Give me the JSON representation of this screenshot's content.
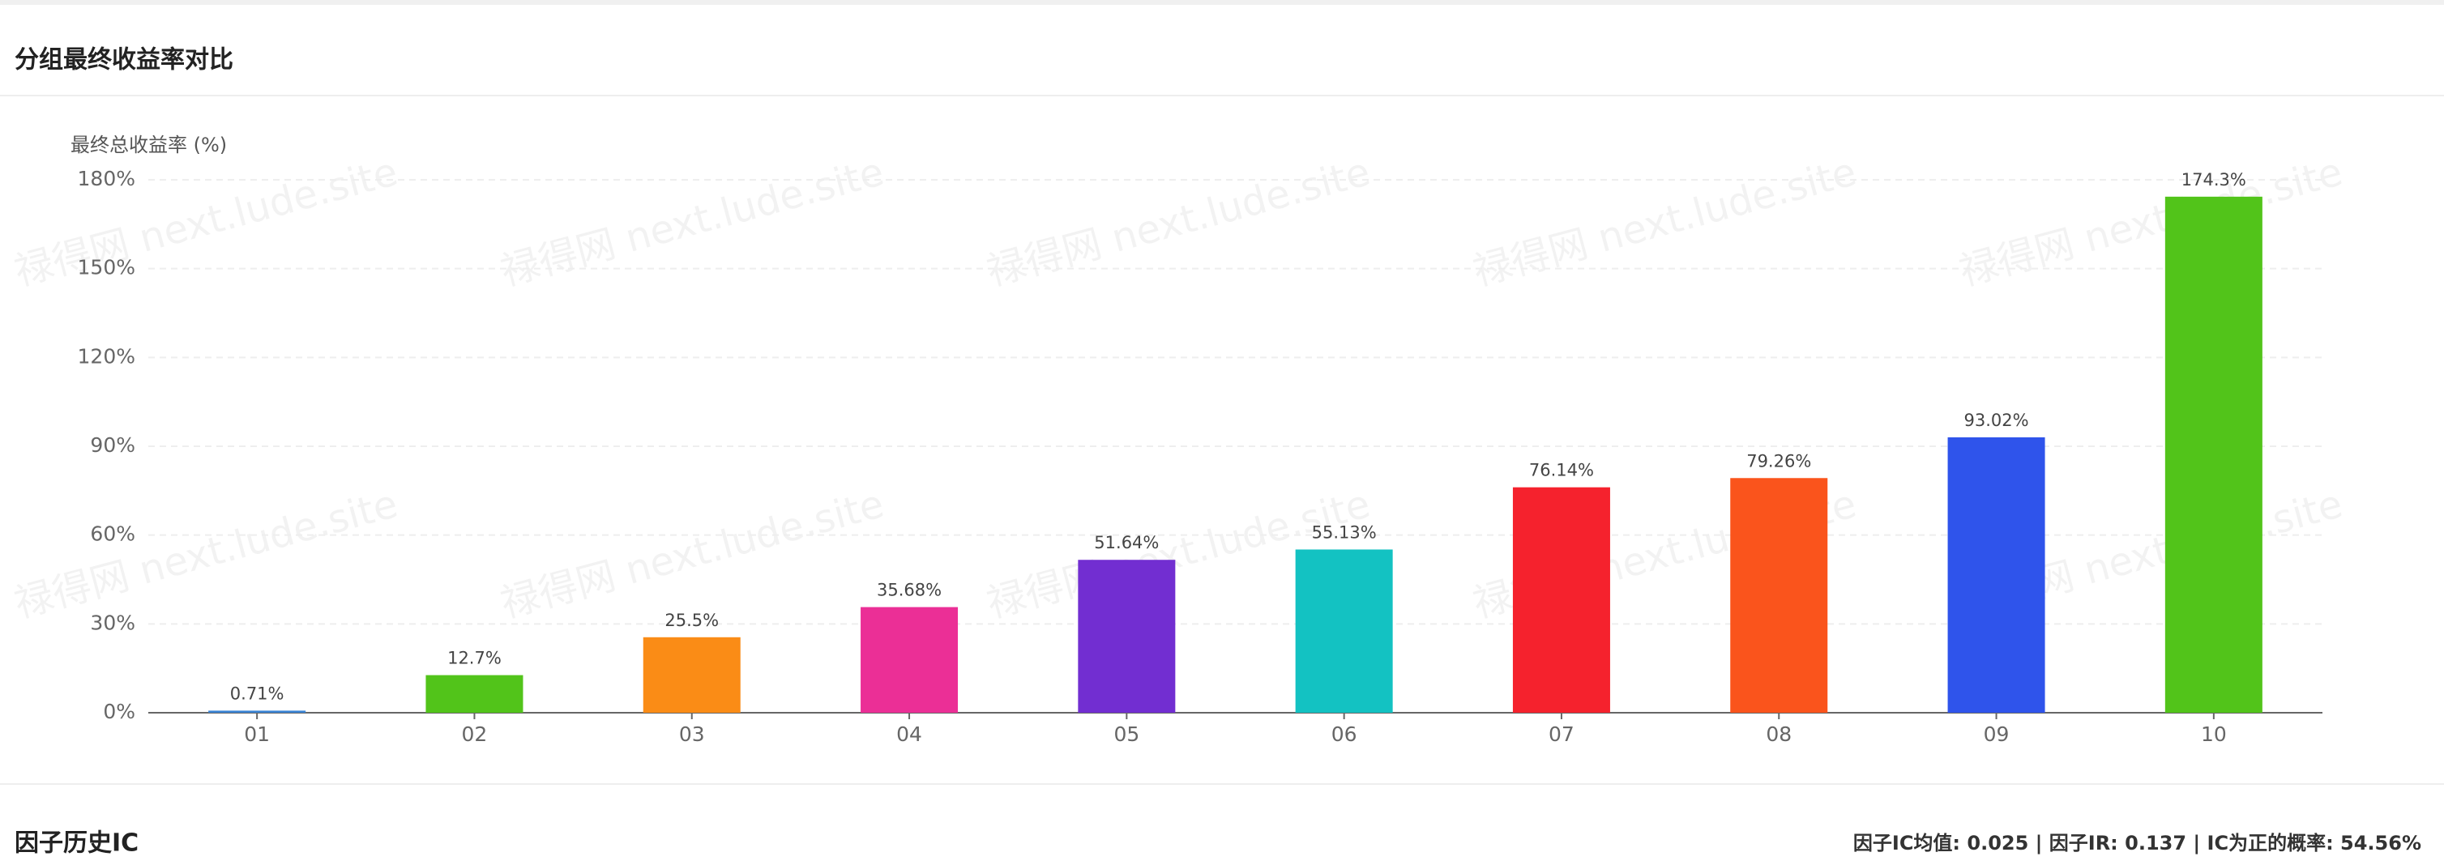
{
  "chart_data": {
    "type": "bar",
    "title": "分组最终收益率对比",
    "y_label": "最终总收益率 (%)",
    "categories": [
      "01",
      "02",
      "03",
      "04",
      "05",
      "06",
      "07",
      "08",
      "09",
      "10"
    ],
    "values": [
      0.71,
      12.7,
      25.5,
      35.68,
      51.64,
      55.13,
      76.14,
      79.26,
      93.02,
      174.3
    ],
    "value_labels": [
      "0.71%",
      "12.7%",
      "25.5%",
      "35.68%",
      "51.64%",
      "55.13%",
      "76.14%",
      "79.26%",
      "93.02%",
      "174.3%"
    ],
    "colors": [
      "#3a84d4",
      "#52c41a",
      "#fa8c16",
      "#eb2f96",
      "#722ed1",
      "#13c2c2",
      "#f5222d",
      "#fa541c",
      "#2f54eb",
      "#52c41a"
    ],
    "ylim": [
      0,
      180
    ],
    "yticks": [
      {
        "value": 0,
        "label": "0%"
      },
      {
        "value": 30,
        "label": "30%"
      },
      {
        "value": 60,
        "label": "60%"
      },
      {
        "value": 90,
        "label": "90%"
      },
      {
        "value": 120,
        "label": "120%"
      },
      {
        "value": 150,
        "label": "150%"
      },
      {
        "value": 180,
        "label": "180%"
      }
    ],
    "grid": true
  },
  "watermark": "禄得网 next.lude.site",
  "next_section": {
    "title": "因子历史IC",
    "stats": "因子IC均值: 0.025 | 因子IR: 0.137 | IC为正的概率: 54.56%"
  }
}
